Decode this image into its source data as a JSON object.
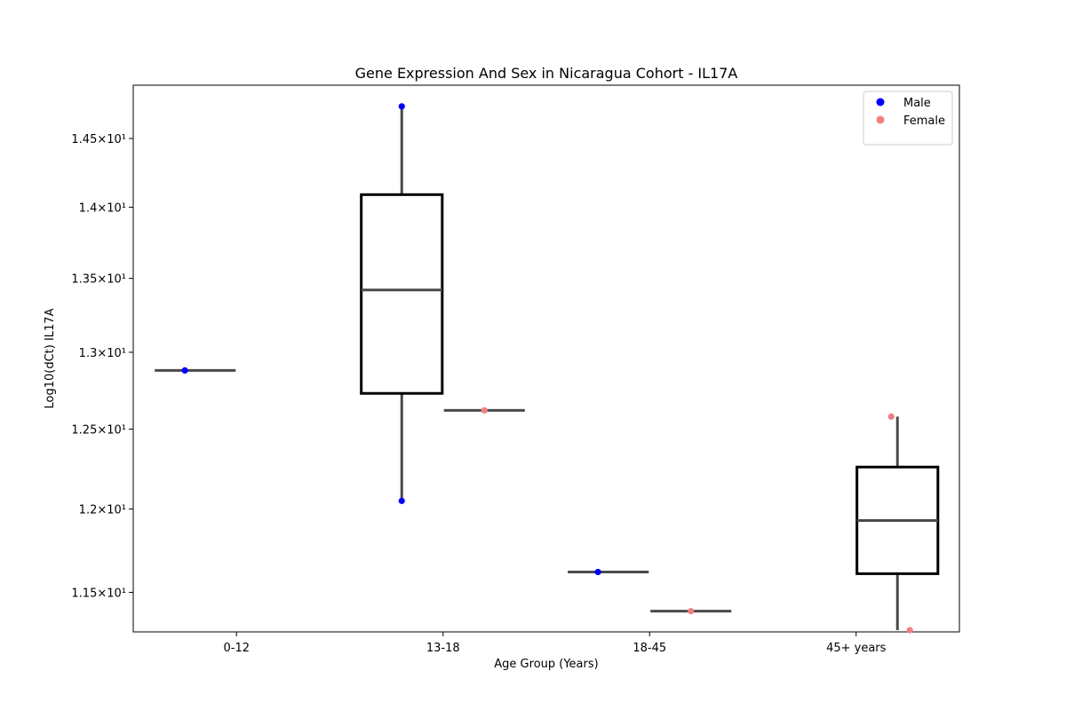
{
  "chart_data": {
    "type": "box",
    "title": "Gene Expression And Sex in Nicaragua Cohort - IL17A",
    "xlabel": "Age Group (Years)",
    "ylabel": "Log10(dCt) IL17A",
    "y_scale": "log",
    "ylim": [
      11.27,
      14.9
    ],
    "y_ticks": [
      {
        "value": 11.5,
        "label": "1.15×10¹"
      },
      {
        "value": 12.0,
        "label": "1.2×10¹"
      },
      {
        "value": 12.5,
        "label": "1.25×10¹"
      },
      {
        "value": 13.0,
        "label": "1.3×10¹"
      },
      {
        "value": 13.5,
        "label": "1.35×10¹"
      },
      {
        "value": 14.0,
        "label": "1.4×10¹"
      },
      {
        "value": 14.5,
        "label": "1.45×10¹"
      }
    ],
    "categories": [
      "0-12",
      "13-18",
      "18-45",
      "45+ years"
    ],
    "hue_order": [
      "Male",
      "Female"
    ],
    "boxes": [
      {
        "category": "0-12",
        "sex": "Male",
        "q1": 12.88,
        "median": 12.88,
        "q3": 12.88,
        "whisker_low": 12.88,
        "whisker_high": 12.88
      },
      {
        "category": "13-18",
        "sex": "Male",
        "q1": 12.73,
        "median": 13.42,
        "q3": 14.09,
        "whisker_low": 12.05,
        "whisker_high": 14.74
      },
      {
        "category": "13-18",
        "sex": "Female",
        "q1": 12.62,
        "median": 12.62,
        "q3": 12.62,
        "whisker_low": 12.62,
        "whisker_high": 12.62
      },
      {
        "category": "18-45",
        "sex": "Male",
        "q1": 11.62,
        "median": 11.62,
        "q3": 11.62,
        "whisker_low": 11.62,
        "whisker_high": 11.62
      },
      {
        "category": "18-45",
        "sex": "Female",
        "q1": 11.39,
        "median": 11.39,
        "q3": 11.39,
        "whisker_low": 11.39,
        "whisker_high": 11.39
      },
      {
        "category": "45+ years",
        "sex": "Female",
        "q1": 11.61,
        "median": 11.93,
        "q3": 12.26,
        "whisker_low": 11.28,
        "whisker_high": 12.58
      }
    ],
    "points": [
      {
        "category": "0-12",
        "sex": "Male",
        "value": 12.88,
        "jitter": -0.05
      },
      {
        "category": "13-18",
        "sex": "Male",
        "value": 14.74,
        "jitter": 0.0
      },
      {
        "category": "13-18",
        "sex": "Male",
        "value": 12.05,
        "jitter": 0.0
      },
      {
        "category": "13-18",
        "sex": "Female",
        "value": 12.62,
        "jitter": 0.0
      },
      {
        "category": "18-45",
        "sex": "Male",
        "value": 11.62,
        "jitter": -0.05
      },
      {
        "category": "18-45",
        "sex": "Female",
        "value": 11.39,
        "jitter": 0.0
      },
      {
        "category": "45+ years",
        "sex": "Female",
        "value": 12.58,
        "jitter": -0.03
      },
      {
        "category": "45+ years",
        "sex": "Female",
        "value": 11.28,
        "jitter": 0.06
      }
    ],
    "legend": {
      "position": "top-right",
      "entries": [
        {
          "label": "Male",
          "color": "#0000ff"
        },
        {
          "label": "Female",
          "color": "#f08080"
        }
      ]
    },
    "colors": {
      "Male": "#0000ff",
      "Female": "#f08080",
      "box_edge": "#000000",
      "median_whisker": "#4a4a4a"
    },
    "grid": false
  }
}
